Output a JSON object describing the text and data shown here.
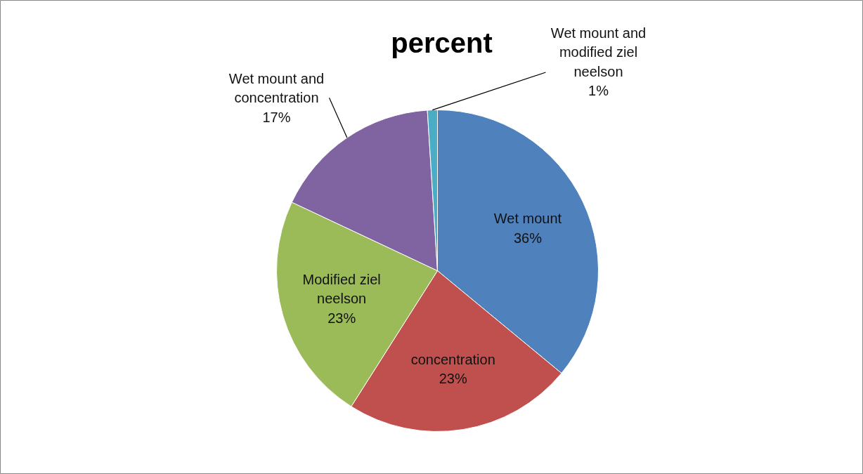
{
  "chart_data": {
    "type": "pie",
    "title": "percent",
    "categories": [
      "Wet mount",
      "concentration",
      "Modified ziel neelson",
      "Wet mount and concentration",
      "Wet mount and modified ziel neelson"
    ],
    "values": [
      36,
      23,
      23,
      17,
      1
    ],
    "value_labels": [
      "36%",
      "23%",
      "23%",
      "17%",
      "1%"
    ],
    "colors": [
      "#4f81bd",
      "#c0504d",
      "#9bbb59",
      "#8064a2",
      "#4bacc6"
    ],
    "data_labels": true
  }
}
